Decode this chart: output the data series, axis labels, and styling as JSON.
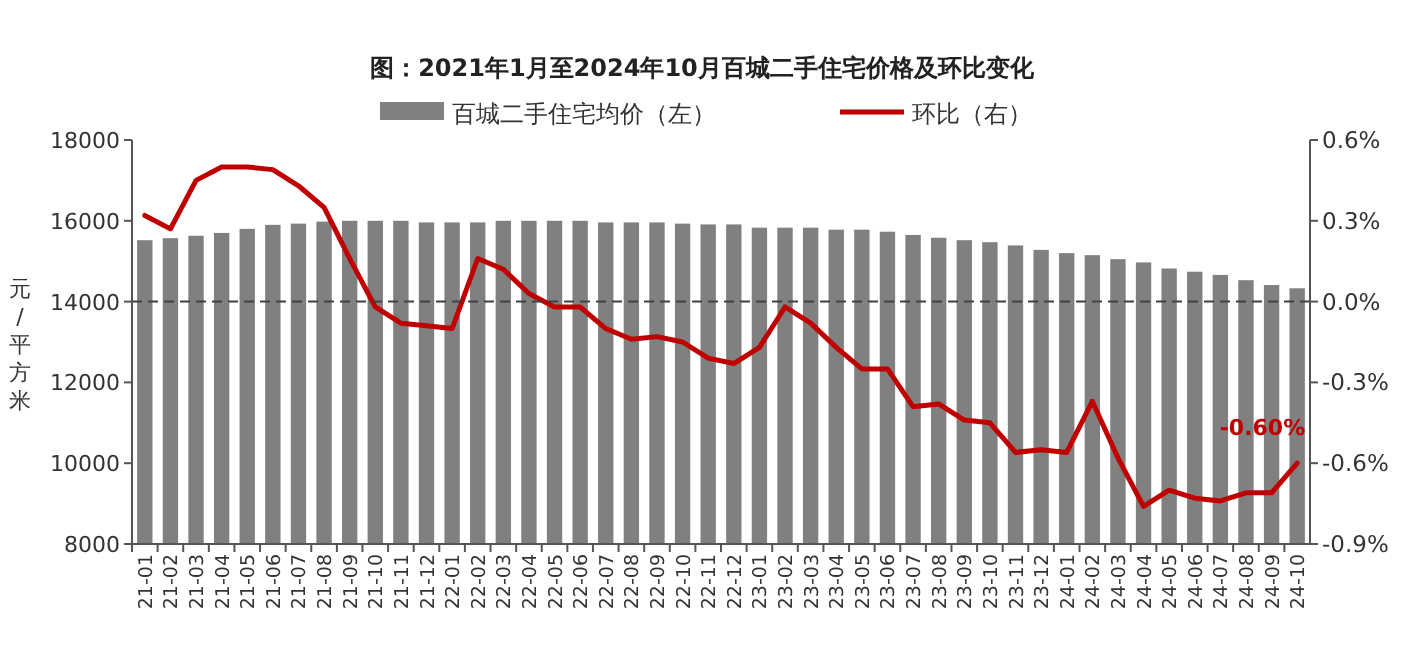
{
  "chart_data": {
    "type": "bar",
    "title": "图：2021年1月至2024年10月百城二手住宅价格及环比变化",
    "ylabel": "元/平方米",
    "categories": [
      "21-01",
      "21-02",
      "21-03",
      "21-04",
      "21-05",
      "21-06",
      "21-07",
      "21-08",
      "21-09",
      "21-10",
      "21-11",
      "21-12",
      "22-01",
      "22-02",
      "22-03",
      "22-04",
      "22-05",
      "22-06",
      "22-07",
      "22-08",
      "22-09",
      "22-10",
      "22-11",
      "22-12",
      "23-01",
      "23-02",
      "23-03",
      "23-04",
      "23-05",
      "23-06",
      "23-07",
      "23-08",
      "23-09",
      "23-10",
      "23-11",
      "23-12",
      "24-01",
      "24-02",
      "24-03",
      "24-04",
      "24-05",
      "24-06",
      "24-07",
      "24-08",
      "24-09",
      "24-10"
    ],
    "series": [
      {
        "name": "百城二手住宅均价（左）",
        "color": "#808080",
        "values": [
          15520,
          15570,
          15630,
          15700,
          15800,
          15900,
          15930,
          15980,
          16000,
          16000,
          16000,
          15960,
          15960,
          15960,
          16000,
          16000,
          16000,
          16000,
          15960,
          15960,
          15960,
          15930,
          15910,
          15910,
          15830,
          15830,
          15830,
          15780,
          15780,
          15730,
          15650,
          15580,
          15520,
          15470,
          15390,
          15280,
          15200,
          15150,
          15050,
          14970,
          14820,
          14740,
          14660,
          14530,
          14410,
          14330
        ]
      },
      {
        "name": "环比（右）",
        "type": "line",
        "axis": "y2",
        "color": "#c00000",
        "values": [
          0.32,
          0.27,
          0.45,
          0.5,
          0.5,
          0.49,
          0.43,
          0.35,
          0.16,
          -0.02,
          -0.08,
          -0.09,
          -0.1,
          0.16,
          0.12,
          0.03,
          -0.02,
          -0.02,
          -0.1,
          -0.14,
          -0.13,
          -0.15,
          -0.21,
          -0.23,
          -0.17,
          -0.02,
          -0.08,
          -0.17,
          -0.25,
          -0.25,
          -0.39,
          -0.38,
          -0.44,
          -0.45,
          -0.56,
          -0.55,
          -0.56,
          -0.37,
          -0.58,
          -0.76,
          -0.7,
          -0.73,
          -0.74,
          -0.71,
          -0.71,
          -0.6
        ],
        "value_labels": [
          null,
          null,
          null,
          null,
          null,
          null,
          null,
          null,
          null,
          null,
          null,
          null,
          null,
          null,
          null,
          null,
          null,
          null,
          null,
          null,
          null,
          null,
          null,
          null,
          null,
          null,
          null,
          null,
          null,
          null,
          null,
          null,
          null,
          null,
          null,
          null,
          null,
          null,
          null,
          null,
          null,
          null,
          null,
          null,
          null,
          "-0.60%"
        ]
      }
    ],
    "ylim": [
      8000,
      18000
    ],
    "yticks": [
      8000,
      10000,
      12000,
      14000,
      16000,
      18000
    ],
    "y2lim": [
      -0.9,
      0.6
    ],
    "y2ticks": [
      {
        "value": -0.9,
        "label": "-0.9%"
      },
      {
        "value": -0.6,
        "label": "-0.6%"
      },
      {
        "value": -0.3,
        "label": "-0.3%"
      },
      {
        "value": 0,
        "label": "0.0%"
      },
      {
        "value": 0.3,
        "label": "0.3%"
      },
      {
        "value": 0.6,
        "label": "0.6%"
      }
    ],
    "ref_lines": [
      {
        "axis": "y2",
        "value": 0,
        "color": "#404040",
        "line_style": "dashed"
      }
    ],
    "legend": "top",
    "grid": false
  }
}
